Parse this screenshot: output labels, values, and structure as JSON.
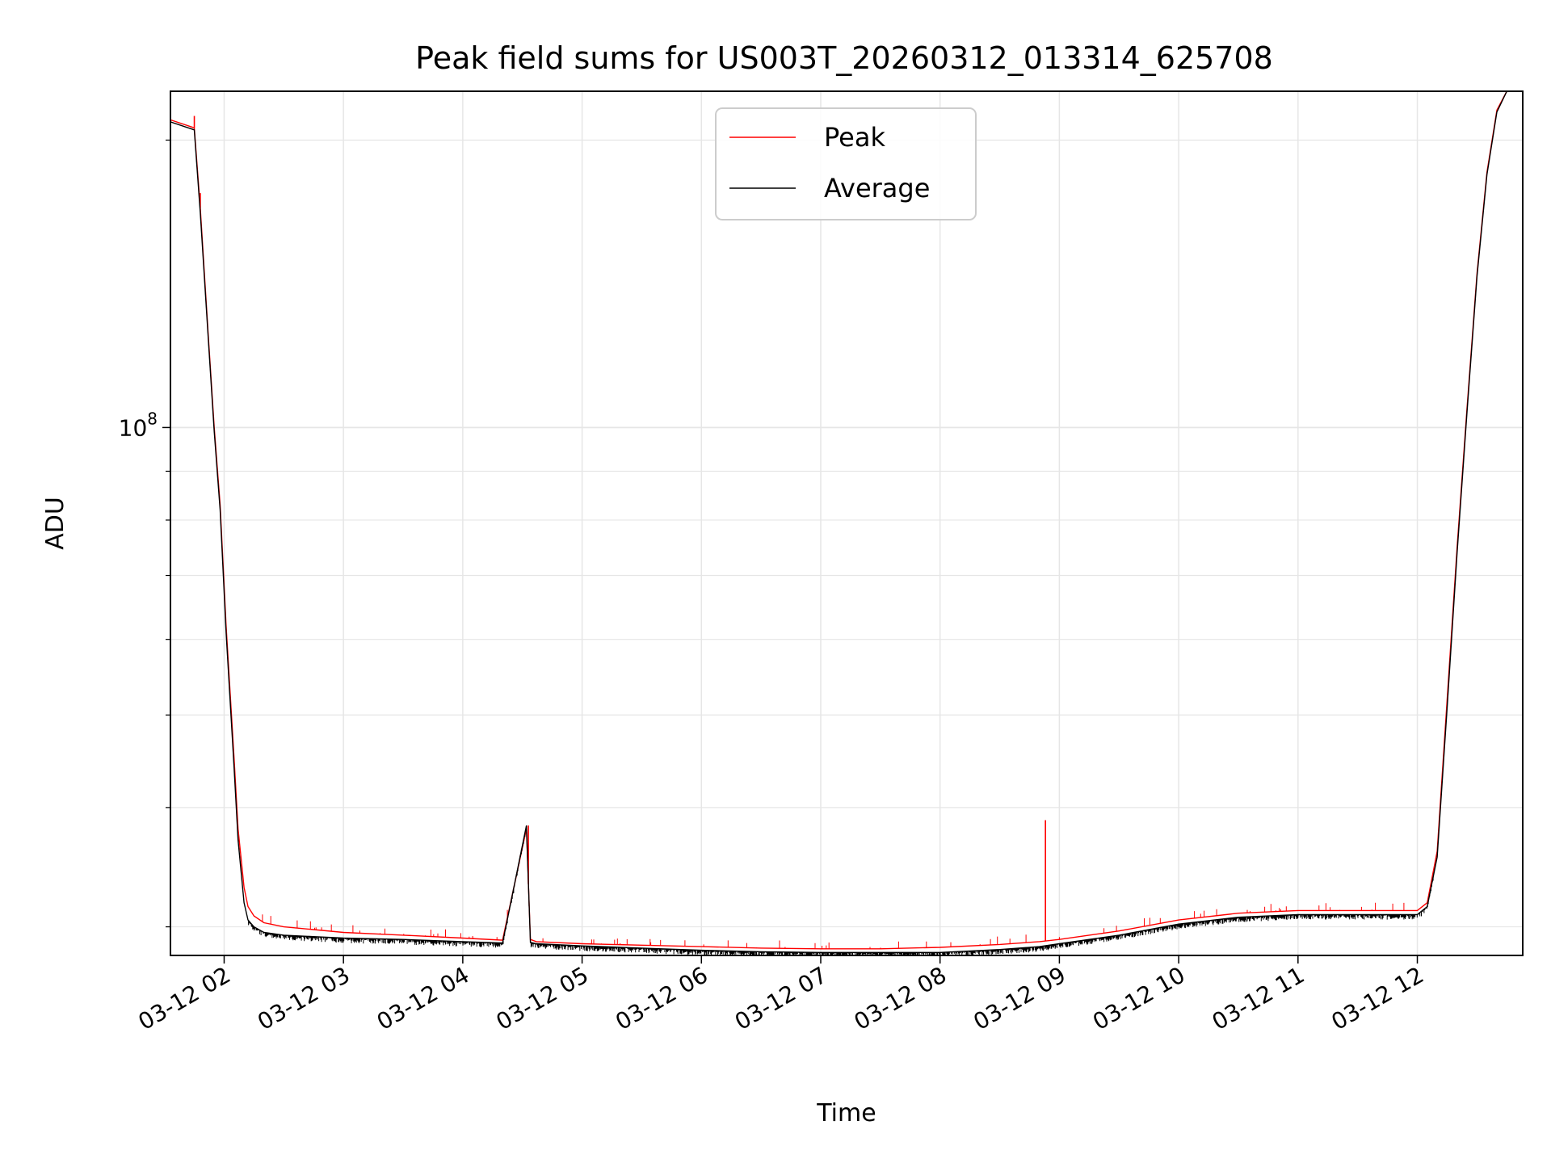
{
  "chart_data": {
    "type": "line",
    "title": "Peak field sums for US003T_20260312_013314_625708",
    "xlabel": "Time",
    "ylabel": "ADU",
    "y_scale": "log",
    "grid": true,
    "legend_position": "upper-center",
    "x_unit": "time (2026-03-12, HH:MM)",
    "x_range": [
      "01:33",
      "12:53"
    ],
    "y_range": [
      28000000,
      225000000
    ],
    "x_tick_labels": [
      "03-12 02",
      "03-12 03",
      "03-12 04",
      "03-12 05",
      "03-12 06",
      "03-12 07",
      "03-12 08",
      "03-12 09",
      "03-12 10",
      "03-12 11",
      "03-12 12"
    ],
    "x_tick_values": [
      "02:00",
      "03:00",
      "04:00",
      "05:00",
      "06:00",
      "07:00",
      "08:00",
      "09:00",
      "10:00",
      "11:00",
      "12:00"
    ],
    "y_tick_labels": [
      {
        "base": "10",
        "exp": "8",
        "value": 100000000
      }
    ],
    "series": [
      {
        "name": "Peak",
        "color": "#ff0000",
        "x": [
          "01:33",
          "01:45",
          "01:48",
          "01:52",
          "01:55",
          "01:58",
          "02:01",
          "02:05",
          "02:07",
          "02:10",
          "02:12",
          "02:15",
          "02:20",
          "02:30",
          "02:45",
          "03:00",
          "03:30",
          "04:00",
          "04:20",
          "04:32",
          "04:34",
          "04:37",
          "05:00",
          "05:30",
          "06:00",
          "06:30",
          "07:00",
          "07:30",
          "08:00",
          "08:30",
          "08:50",
          "09:00",
          "09:30",
          "10:00",
          "10:30",
          "11:00",
          "11:30",
          "12:00",
          "12:05",
          "12:10",
          "12:15",
          "12:20",
          "12:25",
          "12:30",
          "12:35",
          "12:40",
          "12:45",
          "12:48",
          "12:53"
        ],
        "y": [
          210000000,
          206000000,
          170000000,
          125000000,
          100000000,
          83000000,
          62000000,
          45000000,
          38000000,
          33000000,
          31500000,
          30800000,
          30300000,
          30000000,
          29800000,
          29600000,
          29400000,
          29200000,
          29050000,
          38000000,
          29100000,
          28950000,
          28800000,
          28700000,
          28600000,
          28500000,
          28450000,
          28450000,
          28550000,
          28750000,
          28950000,
          29100000,
          29700000,
          30500000,
          31000000,
          31200000,
          31200000,
          31200000,
          31800000,
          36000000,
          52000000,
          75000000,
          105000000,
          145000000,
          185000000,
          215000000,
          225000000,
          225000000,
          225000000
        ],
        "spikes": [
          {
            "x": "04:33",
            "y": 38300000
          },
          {
            "x": "08:53",
            "y": 38800000
          },
          {
            "x": "01:45",
            "y": 212000000
          },
          {
            "x": "01:48",
            "y": 176000000
          }
        ]
      },
      {
        "name": "Average",
        "color": "#000000",
        "x": [
          "01:33",
          "01:45",
          "01:48",
          "01:52",
          "01:55",
          "01:58",
          "02:01",
          "02:05",
          "02:07",
          "02:10",
          "02:12",
          "02:15",
          "02:20",
          "02:30",
          "02:45",
          "03:00",
          "03:30",
          "04:00",
          "04:20",
          "04:32",
          "04:34",
          "04:37",
          "05:00",
          "05:30",
          "06:00",
          "06:30",
          "07:00",
          "07:30",
          "08:00",
          "08:30",
          "08:50",
          "09:00",
          "09:30",
          "10:00",
          "10:30",
          "11:00",
          "11:30",
          "12:00",
          "12:05",
          "12:10",
          "12:15",
          "12:20",
          "12:25",
          "12:30",
          "12:35",
          "12:40",
          "12:45",
          "12:48",
          "12:53"
        ],
        "y": [
          209000000,
          205000000,
          168000000,
          124000000,
          99000000,
          82000000,
          61000000,
          44000000,
          37000000,
          31800000,
          30500000,
          30000000,
          29600000,
          29400000,
          29300000,
          29200000,
          29100000,
          28950000,
          28850000,
          38300000,
          28900000,
          28800000,
          28650000,
          28500000,
          28350000,
          28250000,
          28200000,
          28200000,
          28200000,
          28400000,
          28600000,
          28800000,
          29400000,
          30200000,
          30700000,
          30900000,
          30900000,
          30900000,
          31500000,
          35500000,
          51000000,
          74000000,
          104000000,
          144000000,
          184000000,
          214000000,
          225000000,
          225000000,
          225000000
        ]
      }
    ]
  }
}
